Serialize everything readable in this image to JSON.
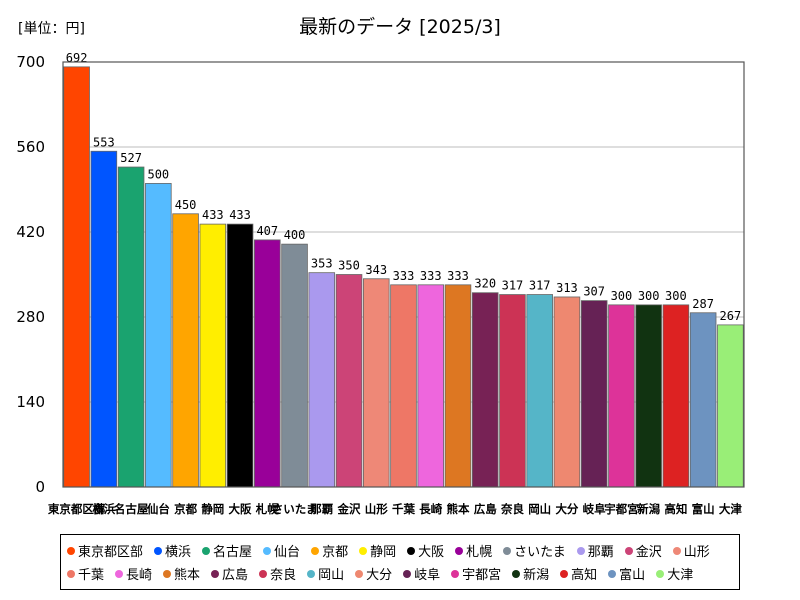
{
  "unit_label": "[単位：円]",
  "chart_data": {
    "type": "bar",
    "title": "最新のデータ [2025/3]",
    "xlabel": "",
    "ylabel": "",
    "ylim": [
      0,
      700
    ],
    "yticks": [
      0,
      140,
      280,
      420,
      560,
      700
    ],
    "grid": true,
    "legend_position": "bottom",
    "categories": [
      "東京都区部",
      "横浜",
      "名古屋",
      "仙台",
      "京都",
      "静岡",
      "大阪",
      "札幌",
      "さいたま",
      "那覇",
      "金沢",
      "山形",
      "千葉",
      "長崎",
      "熊本",
      "広島",
      "奈良",
      "岡山",
      "大分",
      "岐阜",
      "宇都宮",
      "新潟",
      "高知",
      "富山",
      "大津"
    ],
    "values": [
      692,
      553,
      527,
      500,
      450,
      433,
      433,
      407,
      400,
      353,
      350,
      343,
      333,
      333,
      333,
      320,
      317,
      317,
      313,
      307,
      300,
      300,
      300,
      287,
      267
    ],
    "colors": [
      "#ff4500",
      "#0055ff",
      "#1aa36f",
      "#55bbff",
      "#ffa500",
      "#ffee00",
      "#000000",
      "#990099",
      "#7f8c97",
      "#aa99ee",
      "#cc4477",
      "#ee8877",
      "#ee7766",
      "#ee66dd",
      "#dd7722",
      "#772255",
      "#cc3355",
      "#55b5c8",
      "#ee8870",
      "#662255",
      "#dd3399",
      "#113311",
      "#dd2222",
      "#6d93c0",
      "#99ee77"
    ]
  }
}
